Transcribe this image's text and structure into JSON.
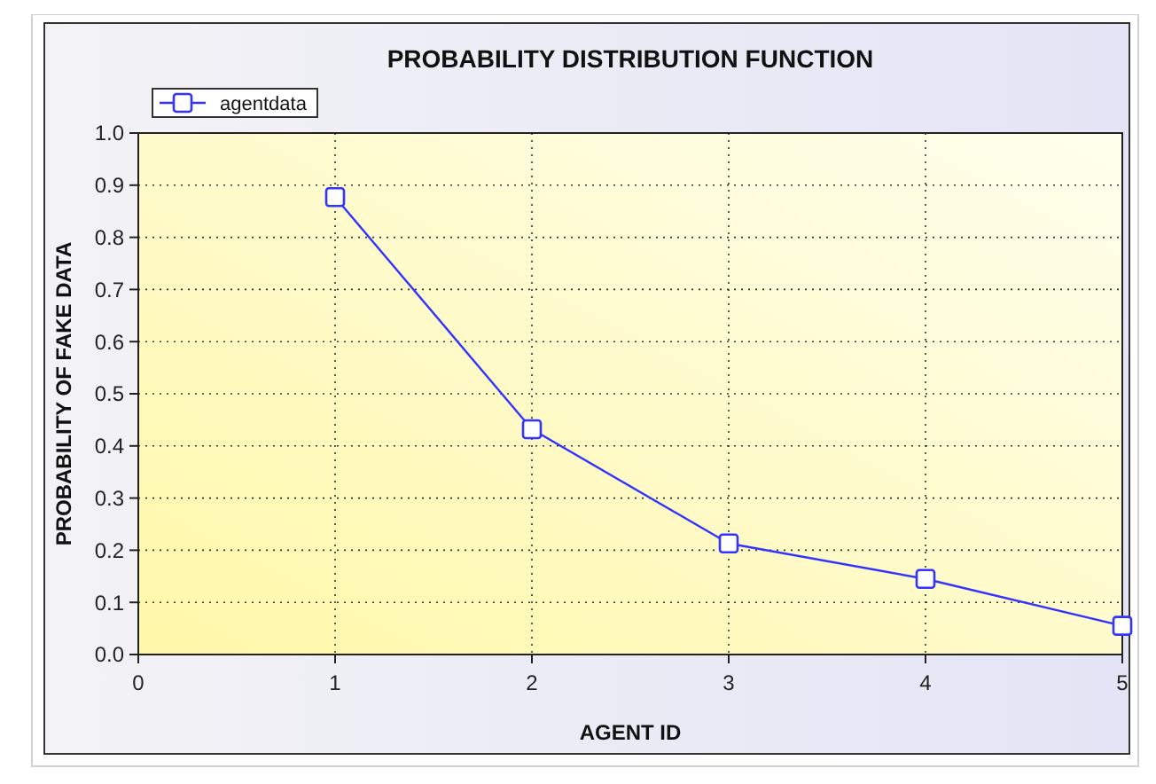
{
  "chart_data": {
    "type": "line",
    "title": "PROBABILITY DISTRIBUTION FUNCTION",
    "xlabel": "AGENT ID",
    "ylabel": "PROBABILITY OF FAKE DATA",
    "x": [
      1,
      2,
      3,
      4,
      5
    ],
    "series": [
      {
        "name": "agentdata",
        "color": "#3333ff",
        "values": [
          0.877,
          0.432,
          0.213,
          0.145,
          0.055
        ]
      }
    ],
    "xlim": [
      0,
      5
    ],
    "xticks": [
      0,
      1,
      2,
      3,
      4,
      5
    ],
    "ylim": [
      0,
      1
    ],
    "yticks": [
      {
        "value": 0,
        "label": "0.0"
      },
      {
        "value": 0.1,
        "label": "0.1"
      },
      {
        "value": 0.2,
        "label": "0.2"
      },
      {
        "value": 0.3,
        "label": "0.3"
      },
      {
        "value": 0.4,
        "label": "0.4"
      },
      {
        "value": 0.5,
        "label": "0.5"
      },
      {
        "value": 0.6,
        "label": "0.6"
      },
      {
        "value": 0.7,
        "label": "0.7"
      },
      {
        "value": 0.8,
        "label": "0.8"
      },
      {
        "value": 0.9,
        "label": "0.9"
      },
      {
        "value": 1,
        "label": "1.0"
      }
    ],
    "grid": true,
    "legend": "top left",
    "marker": "square",
    "line_style": "solid"
  }
}
